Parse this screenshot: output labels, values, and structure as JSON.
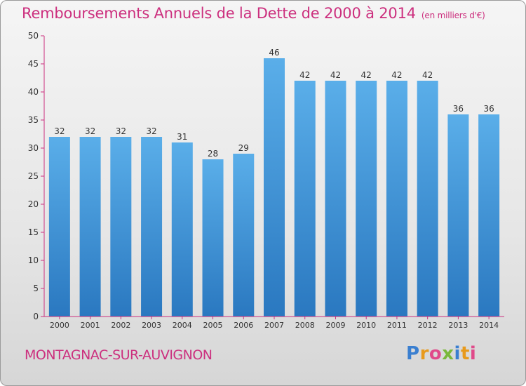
{
  "chart_data": {
    "type": "bar",
    "title": "Remboursements Annuels de la Dette de 2000 à 2014",
    "unit": "(en milliers d'€)",
    "categories": [
      "2000",
      "2001",
      "2002",
      "2003",
      "2004",
      "2005",
      "2006",
      "2007",
      "2008",
      "2009",
      "2010",
      "2011",
      "2012",
      "2013",
      "2014"
    ],
    "values": [
      32,
      32,
      32,
      32,
      31,
      28,
      29,
      46,
      42,
      42,
      42,
      42,
      42,
      36,
      36
    ],
    "ylim": [
      0,
      50
    ],
    "yticks": [
      0,
      5,
      10,
      15,
      20,
      25,
      30,
      35,
      40,
      45,
      50
    ],
    "grid": false,
    "bar_color": "#3a8fd8",
    "axis_color": "#cc2f7e"
  },
  "commune": "MONTAGNAC-SUR-AUVIGNON",
  "logo": {
    "text": "Proxiti",
    "letter_colors": [
      "#3a7fd0",
      "#e89a1c",
      "#e04a8a",
      "#7ab83a",
      "#3a7fd0",
      "#e89a1c",
      "#e04a8a"
    ]
  }
}
